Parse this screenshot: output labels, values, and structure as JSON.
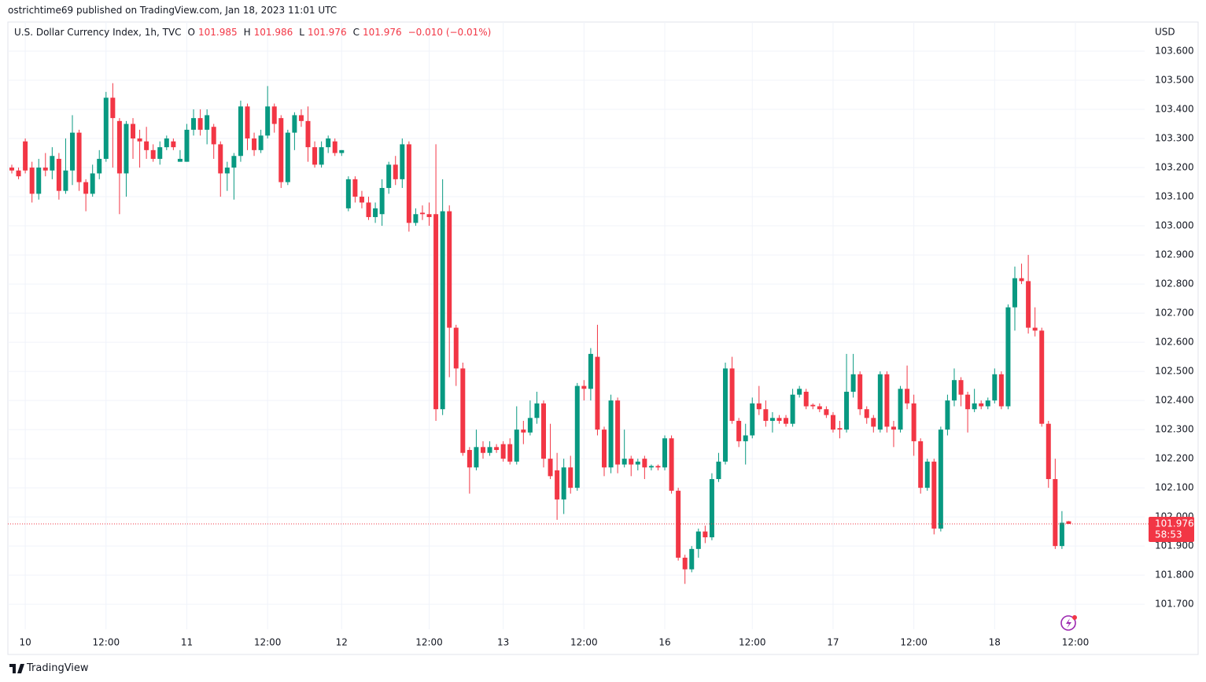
{
  "header": {
    "publisher": "ostrichtime69 published on TradingView.com, Jan 18, 2023 11:01 UTC"
  },
  "legend": {
    "symbol": "U.S. Dollar Currency Index, 1h, TVC",
    "items": [
      {
        "key": "O",
        "value": 101.985
      },
      {
        "key": "H",
        "value": 101.986
      },
      {
        "key": "L",
        "value": 101.976
      },
      {
        "key": "C",
        "value": 101.976
      }
    ],
    "change": "−0.010 (−0.01%)"
  },
  "chart_data": {
    "type": "candlestick",
    "categories": [
      null,
      null,
      "10",
      null,
      null,
      null,
      null,
      null,
      null,
      null,
      null,
      null,
      null,
      null,
      "12:00",
      null,
      null,
      null,
      null,
      null,
      null,
      null,
      null,
      null,
      null,
      null,
      "11",
      null,
      null,
      null,
      null,
      null,
      null,
      null,
      null,
      null,
      null,
      null,
      "12:00",
      null,
      null,
      null,
      null,
      null,
      null,
      null,
      null,
      null,
      null,
      "12",
      null,
      null,
      null,
      null,
      null,
      null,
      null,
      null,
      null,
      null,
      null,
      null,
      "12:00",
      null,
      null,
      null,
      null,
      null,
      null,
      null,
      null,
      null,
      null,
      "13",
      null,
      null,
      null,
      null,
      null,
      null,
      null,
      null,
      null,
      null,
      null,
      "12:00",
      null,
      null,
      null,
      null,
      null,
      null,
      null,
      null,
      null,
      null,
      null,
      "16",
      null,
      null,
      null,
      null,
      null,
      null,
      null,
      null,
      null,
      null,
      null,
      null,
      "12:00",
      null,
      null,
      null,
      null,
      null,
      null,
      null,
      null,
      null,
      null,
      null,
      "17",
      null,
      null,
      null,
      null,
      null,
      null,
      null,
      null,
      null,
      null,
      null,
      "12:00",
      null,
      null,
      null,
      null,
      null,
      null,
      null,
      null,
      null,
      null,
      null,
      "18",
      null,
      null,
      null,
      null,
      null,
      null,
      null,
      null,
      null,
      null,
      null,
      "12:00"
    ],
    "open": [
      103.2,
      103.19,
      103.29,
      103.2,
      103.11,
      103.2,
      103.19,
      103.23,
      103.12,
      103.19,
      103.32,
      103.15,
      103.11,
      103.18,
      103.23,
      103.44,
      103.36,
      103.18,
      103.35,
      103.3,
      103.29,
      103.26,
      103.23,
      103.27,
      103.29,
      103.22,
      103.22,
      103.33,
      103.37,
      103.33,
      103.34,
      103.28,
      103.18,
      103.2,
      103.24,
      103.41,
      103.3,
      103.26,
      103.31,
      103.41,
      103.37,
      103.15,
      103.32,
      103.38,
      103.36,
      103.27,
      103.21,
      103.27,
      103.29,
      103.25,
      103.06,
      103.16,
      103.1,
      103.08,
      103.03,
      103.04,
      103.13,
      103.21,
      103.16,
      103.28,
      103.01,
      103.045,
      103.04,
      103.04,
      102.37,
      103.05,
      102.65,
      102.51,
      102.23,
      102.17,
      102.24,
      102.22,
      102.24,
      102.25,
      102.25,
      102.19,
      102.3,
      102.29,
      102.34,
      102.39,
      102.2,
      102.16,
      102.06,
      102.17,
      102.1,
      102.45,
      102.44,
      102.55,
      102.3,
      102.17,
      102.4,
      102.18,
      102.2,
      102.18,
      102.2,
      102.17,
      102.175,
      102.17,
      102.27,
      102.09,
      101.86,
      101.82,
      101.89,
      101.95,
      101.93,
      102.13,
      102.19,
      102.51,
      102.33,
      102.26,
      102.28,
      102.39,
      102.37,
      102.33,
      102.34,
      102.34,
      102.32,
      102.42,
      102.43,
      102.385,
      102.38,
      102.37,
      102.35,
      102.305,
      102.3,
      102.43,
      102.49,
      102.37,
      102.34,
      102.3,
      102.49,
      102.31,
      102.3,
      102.44,
      102.39,
      102.26,
      102.1,
      102.19,
      101.96,
      102.3,
      102.4,
      102.47,
      102.42,
      102.37,
      102.39,
      102.38,
      102.4,
      102.49,
      102.38,
      102.72,
      102.82,
      102.81,
      102.65,
      102.64,
      102.32,
      102.13,
      101.9,
      101.985,
      null
    ],
    "high": [
      103.21,
      103.2,
      103.3,
      103.22,
      103.23,
      103.25,
      103.27,
      103.25,
      103.3,
      103.38,
      103.33,
      103.16,
      103.21,
      103.26,
      103.46,
      103.49,
      103.37,
      103.36,
      103.37,
      103.33,
      103.34,
      103.28,
      103.29,
      103.31,
      103.3,
      103.26,
      103.35,
      103.4,
      103.4,
      103.4,
      103.35,
      103.29,
      103.22,
      103.25,
      103.43,
      103.42,
      103.32,
      103.33,
      103.48,
      103.42,
      103.38,
      103.33,
      103.39,
      103.4,
      103.41,
      103.29,
      103.29,
      103.31,
      103.3,
      103.26,
      103.17,
      103.17,
      103.12,
      103.1,
      103.08,
      103.16,
      103.22,
      103.24,
      103.3,
      103.29,
      103.06,
      103.07,
      103.08,
      103.28,
      103.16,
      103.07,
      102.66,
      102.53,
      102.24,
      102.3,
      102.26,
      102.26,
      102.25,
      102.26,
      102.27,
      102.38,
      102.33,
      102.4,
      102.43,
      102.4,
      102.32,
      102.22,
      102.2,
      102.21,
      102.46,
      102.47,
      102.58,
      102.66,
      102.31,
      102.42,
      102.41,
      102.3,
      102.21,
      102.2,
      102.21,
      102.18,
      102.18,
      102.28,
      102.28,
      102.1,
      101.87,
      101.9,
      101.96,
      101.97,
      102.15,
      102.22,
      102.53,
      102.55,
      102.34,
      102.32,
      102.41,
      102.45,
      102.4,
      102.36,
      102.35,
      102.35,
      102.44,
      102.45,
      102.44,
      102.39,
      102.39,
      102.38,
      102.36,
      102.33,
      102.56,
      102.56,
      102.5,
      102.38,
      102.35,
      102.5,
      102.5,
      102.33,
      102.45,
      102.52,
      102.42,
      102.27,
      102.2,
      102.2,
      102.31,
      102.42,
      102.51,
      102.48,
      102.43,
      102.44,
      102.4,
      102.41,
      102.51,
      102.5,
      102.73,
      102.86,
      102.87,
      102.9,
      102.72,
      102.65,
      102.33,
      102.2,
      102.02,
      101.986,
      null
    ],
    "low": [
      103.18,
      103.16,
      103.18,
      103.08,
      103.09,
      103.17,
      103.16,
      103.09,
      103.11,
      103.14,
      103.12,
      103.05,
      103.1,
      103.16,
      103.22,
      103.2,
      103.04,
      103.1,
      103.23,
      103.2,
      103.23,
      103.22,
      103.21,
      103.26,
      103.26,
      103.22,
      103.22,
      103.31,
      103.31,
      103.28,
      103.23,
      103.1,
      103.12,
      103.09,
      103.22,
      103.26,
      103.24,
      103.25,
      103.3,
      103.32,
      103.13,
      103.14,
      103.26,
      103.34,
      103.22,
      103.2,
      103.2,
      103.25,
      103.24,
      103.24,
      103.05,
      103.08,
      103.06,
      103.02,
      103.01,
      103.0,
      103.11,
      103.14,
      103.13,
      102.98,
      103.0,
      103.02,
      103.0,
      102.33,
      102.35,
      102.48,
      102.45,
      102.21,
      102.08,
      102.16,
      102.2,
      102.21,
      102.22,
      102.19,
      102.18,
      102.18,
      102.25,
      102.28,
      102.32,
      102.17,
      102.13,
      101.99,
      102.01,
      102.08,
      102.09,
      102.4,
      102.4,
      102.28,
      102.14,
      102.15,
      102.15,
      102.17,
      102.14,
      102.16,
      102.13,
      102.16,
      102.16,
      102.16,
      102.08,
      101.85,
      101.77,
      101.81,
      101.86,
      101.91,
      101.92,
      102.12,
      102.18,
      102.32,
      102.24,
      102.18,
      102.27,
      102.35,
      102.31,
      102.29,
      102.32,
      102.31,
      102.31,
      102.41,
      102.37,
      102.37,
      102.36,
      102.34,
      102.29,
      102.27,
      102.29,
      102.41,
      102.35,
      102.32,
      102.29,
      102.29,
      102.29,
      102.24,
      102.29,
      102.37,
      102.21,
      102.08,
      102.09,
      101.94,
      101.95,
      102.28,
      102.38,
      102.38,
      102.29,
      102.36,
      102.37,
      102.37,
      102.39,
      102.37,
      102.37,
      102.64,
      102.8,
      102.63,
      102.62,
      102.31,
      102.1,
      101.89,
      101.89,
      101.976,
      null
    ],
    "close": [
      103.19,
      103.17,
      103.19,
      103.11,
      103.2,
      103.19,
      103.24,
      103.12,
      103.19,
      103.32,
      103.15,
      103.11,
      103.18,
      103.23,
      103.44,
      103.37,
      103.18,
      103.35,
      103.3,
      103.29,
      103.26,
      103.23,
      103.27,
      103.3,
      103.27,
      103.23,
      103.33,
      103.37,
      103.33,
      103.38,
      103.28,
      103.18,
      103.2,
      103.24,
      103.41,
      103.3,
      103.26,
      103.31,
      103.41,
      103.35,
      103.15,
      103.32,
      103.38,
      103.36,
      103.27,
      103.21,
      103.27,
      103.3,
      103.25,
      103.26,
      103.16,
      103.1,
      103.08,
      103.03,
      103.06,
      103.13,
      103.21,
      103.16,
      103.28,
      103.01,
      103.04,
      103.04,
      103.03,
      102.37,
      103.05,
      102.65,
      102.51,
      102.22,
      102.17,
      102.24,
      102.22,
      102.24,
      102.23,
      102.2,
      102.19,
      102.3,
      102.29,
      102.34,
      102.39,
      102.2,
      102.14,
      102.06,
      102.17,
      102.1,
      102.45,
      102.44,
      102.56,
      102.3,
      102.17,
      102.4,
      102.18,
      102.2,
      102.18,
      102.19,
      102.17,
      102.175,
      102.17,
      102.27,
      102.09,
      101.86,
      101.82,
      101.89,
      101.95,
      101.93,
      102.13,
      102.19,
      102.51,
      102.33,
      102.26,
      102.28,
      102.39,
      102.37,
      102.33,
      102.34,
      102.33,
      102.32,
      102.42,
      102.44,
      102.38,
      102.38,
      102.37,
      102.35,
      102.3,
      102.3,
      102.43,
      102.49,
      102.37,
      102.34,
      102.31,
      102.49,
      102.31,
      102.3,
      102.44,
      102.39,
      102.26,
      102.1,
      102.19,
      101.96,
      102.3,
      102.4,
      102.47,
      102.42,
      102.37,
      102.39,
      102.38,
      102.4,
      102.49,
      102.38,
      102.72,
      102.82,
      102.81,
      102.65,
      102.64,
      102.32,
      102.13,
      101.9,
      101.98,
      101.976,
      null
    ],
    "up_color": "#089981",
    "down_color": "#f23645",
    "ylim": [
      101.614,
      103.7
    ],
    "yticks": [
      {
        "value": 101.7,
        "label": "101.700"
      },
      {
        "value": 101.8,
        "label": "101.800"
      },
      {
        "value": 101.9,
        "label": "101.900"
      },
      {
        "value": 102.0,
        "label": "102.000"
      },
      {
        "value": 102.1,
        "label": "102.100"
      },
      {
        "value": 102.2,
        "label": "102.200"
      },
      {
        "value": 102.3,
        "label": "102.300"
      },
      {
        "value": 102.4,
        "label": "102.400"
      },
      {
        "value": 102.5,
        "label": "102.500"
      },
      {
        "value": 102.6,
        "label": "102.600"
      },
      {
        "value": 102.7,
        "label": "102.700"
      },
      {
        "value": 102.8,
        "label": "102.800"
      },
      {
        "value": 102.9,
        "label": "102.900"
      },
      {
        "value": 103.0,
        "label": "103.000"
      },
      {
        "value": 103.1,
        "label": "103.100"
      },
      {
        "value": 103.2,
        "label": "103.200"
      },
      {
        "value": 103.3,
        "label": "103.300"
      },
      {
        "value": 103.4,
        "label": "103.400"
      },
      {
        "value": 103.5,
        "label": "103.500"
      },
      {
        "value": 103.6,
        "label": "103.600"
      }
    ],
    "y_unit": "USD",
    "grid": true,
    "last_price": 101.976,
    "countdown": "58:53"
  },
  "footer": {
    "brand": "TradingView"
  }
}
